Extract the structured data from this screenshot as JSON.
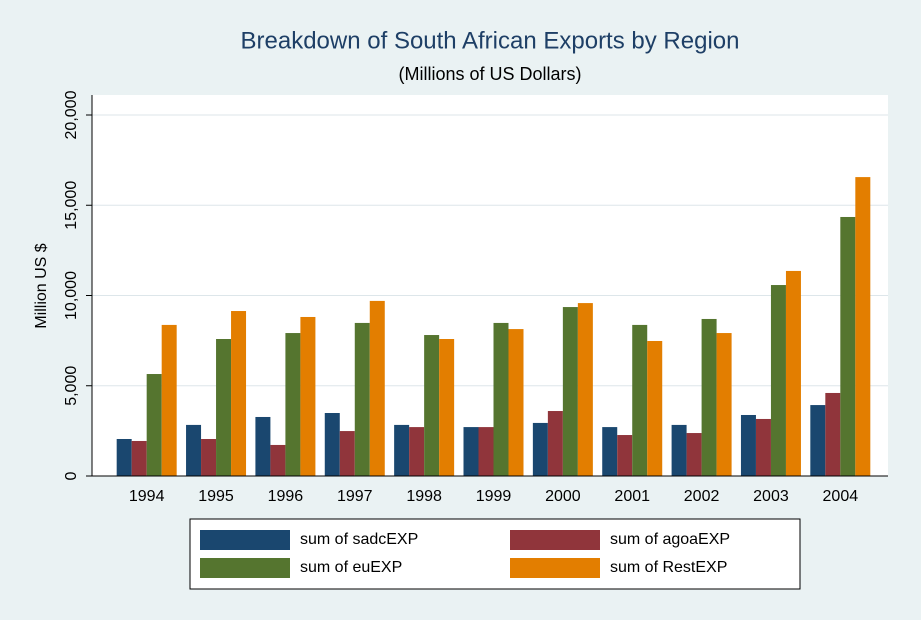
{
  "chart_data": {
    "type": "bar",
    "title": "Breakdown of South African Exports by Region",
    "subtitle": "(Millions of US Dollars)",
    "y_label": "Million US $",
    "categories": [
      "1994",
      "1995",
      "1996",
      "1997",
      "1998",
      "1999",
      "2000",
      "2001",
      "2002",
      "2003",
      "2004"
    ],
    "series": [
      {
        "name": "sum of sadcEXP",
        "color": "#1a476f",
        "values": [
          2050,
          2830,
          3270,
          3490,
          2830,
          2710,
          2940,
          2710,
          2830,
          3380,
          3930
        ]
      },
      {
        "name": "sum of agoaEXP",
        "color": "#90353b",
        "values": [
          1940,
          2050,
          1720,
          2490,
          2710,
          2710,
          3600,
          2270,
          2380,
          3160,
          4600
        ]
      },
      {
        "name": "sum of euEXP",
        "color": "#55752f",
        "values": [
          5650,
          7590,
          7920,
          8480,
          7810,
          8480,
          9360,
          8370,
          8700,
          10580,
          14350
        ]
      },
      {
        "name": "sum of RestEXP",
        "color": "#e37e00",
        "values": [
          8370,
          9140,
          8810,
          9700,
          7590,
          8140,
          9580,
          7480,
          7920,
          11360,
          16560
        ]
      }
    ],
    "ylim": [
      0,
      20000
    ],
    "yticks": [
      0,
      {
        "value": 5000,
        "label": "5,000"
      },
      {
        "value": 10000,
        "label": "10,000"
      },
      {
        "value": 15000,
        "label": "15,000"
      },
      {
        "value": 20000,
        "label": "20,000"
      }
    ],
    "grid": true
  }
}
